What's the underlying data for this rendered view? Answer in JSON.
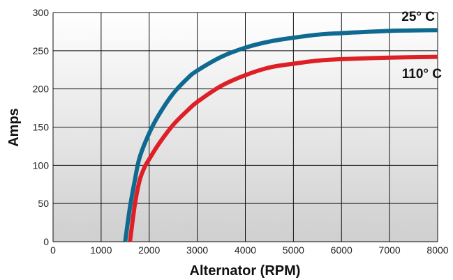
{
  "chart_data": {
    "type": "line",
    "title": "",
    "xlabel": "Alternator (RPM)",
    "ylabel": "Amps",
    "xlim": [
      0,
      8000
    ],
    "ylim": [
      0,
      300
    ],
    "x_ticks": [
      "0",
      "1000",
      "2000",
      "3000",
      "4000",
      "5000",
      "6000",
      "7000",
      "8000"
    ],
    "y_ticks": [
      "0",
      "50",
      "100",
      "150",
      "200",
      "250",
      "300"
    ],
    "grid": true,
    "background": "vertical gradient white to light gray",
    "series": [
      {
        "name": "25° C",
        "color": "#0e6a90",
        "x": [
          1500,
          1600,
          1700,
          1800,
          2000,
          2200,
          2500,
          2800,
          3000,
          3500,
          4000,
          4500,
          5000,
          5500,
          6000,
          7000,
          8000
        ],
        "y": [
          0,
          45,
          80,
          110,
          142,
          166,
          194,
          214,
          224,
          242,
          254,
          262,
          267,
          271,
          273,
          276,
          277
        ]
      },
      {
        "name": "110° C",
        "color": "#dd2026",
        "x": [
          1600,
          1700,
          1800,
          1900,
          2000,
          2200,
          2500,
          2800,
          3000,
          3500,
          4000,
          4500,
          5000,
          5500,
          6000,
          7000,
          8000
        ],
        "y": [
          0,
          48,
          80,
          97,
          108,
          128,
          153,
          172,
          183,
          204,
          218,
          228,
          233,
          237,
          239,
          241,
          242
        ]
      }
    ]
  }
}
